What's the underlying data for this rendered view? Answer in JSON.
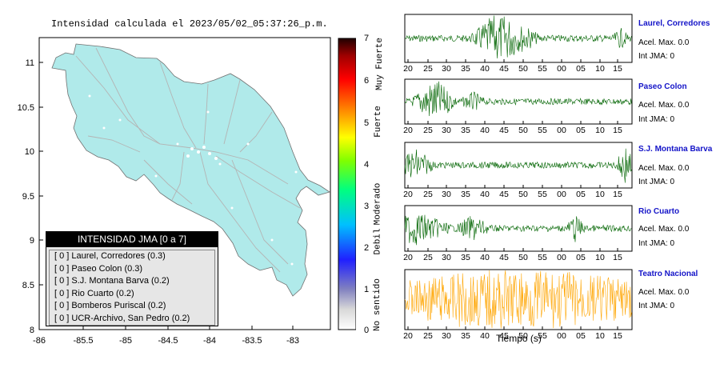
{
  "map": {
    "title": "Intensidad calculada el 2023/05/02_05:37:26_p.m.",
    "x_ticks": [
      "-86",
      "-85.5",
      "-85",
      "-84.5",
      "-84",
      "-83.5",
      "-83"
    ],
    "y_ticks": [
      "11",
      "10.5",
      "10",
      "9.5",
      "9",
      "8.5",
      "8"
    ],
    "land_color": "#b0eaea",
    "road_color": "#b4b4b4"
  },
  "scale": {
    "ticks": [
      "7",
      "6",
      "5",
      "4",
      "3",
      "2",
      "1",
      "0"
    ],
    "categories": [
      "Muy Fuerte",
      "Fuerte",
      "Moderado",
      "Debil",
      "No sentido"
    ]
  },
  "legend": {
    "header": "INTENSIDAD JMA [0 a 7]",
    "rows": [
      "[ 0 ]  Laurel, Corredores (0.3)",
      "[ 0 ]  Paseo Colon (0.3)",
      "[ 0 ]  S.J. Montana Barva (0.2)",
      "[ 0 ]  Rio Cuarto (0.2)",
      "[ 0 ]  Bomberos Puriscal (0.2)",
      "[ 0 ]  UCR-Archivo, San Pedro (0.2)"
    ]
  },
  "stations": [
    {
      "name": "Laurel, Corredores",
      "acel": "Acel. Max. 0.0",
      "jma": "Int JMA: 0",
      "color": "#006400"
    },
    {
      "name": "Paseo Colon",
      "acel": "Acel. Max. 0.0",
      "jma": "Int JMA: 0",
      "color": "#006400"
    },
    {
      "name": "S.J. Montana Barva",
      "acel": "Acel. Max. 0.0",
      "jma": "Int JMA: 0",
      "color": "#006400"
    },
    {
      "name": "Rio Cuarto",
      "acel": "Acel. Max. 0.0",
      "jma": "Int JMA: 0",
      "color": "#006400"
    },
    {
      "name": "Teatro Nacional",
      "acel": "Acel. Max. 0.0",
      "jma": "Int JMA: 0",
      "color": "#ffa500"
    }
  ],
  "wave_ticks": [
    "20",
    "25",
    "30",
    "35",
    "40",
    "45",
    "50",
    "55",
    "00",
    "05",
    "10",
    "15"
  ],
  "xaxis_label": "Tiempo (s)"
}
